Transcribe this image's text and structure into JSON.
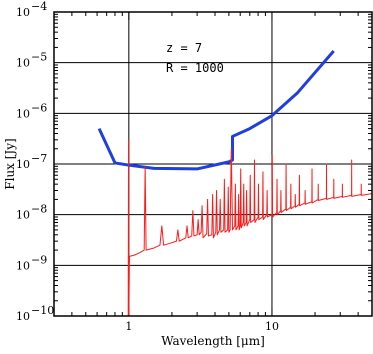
{
  "chart_data": {
    "type": "line",
    "xlabel": "Wavelength  [μm]",
    "ylabel": "Flux [Jy]",
    "x_scale": "log",
    "y_scale": "log",
    "xlim": [
      0.3,
      50
    ],
    "ylim": [
      1e-10,
      0.0001
    ],
    "grid": true,
    "annotations": [
      "z = 7",
      "R = 1000"
    ],
    "x_ticks": [
      {
        "value": 1,
        "label": "1"
      },
      {
        "value": 10,
        "label": "10"
      }
    ],
    "y_ticks": [
      {
        "value": 1e-10,
        "mantissa": "10",
        "exp": "−10"
      },
      {
        "value": 1e-09,
        "mantissa": "10",
        "exp": "−9"
      },
      {
        "value": 1e-08,
        "mantissa": "10",
        "exp": "−8"
      },
      {
        "value": 1e-07,
        "mantissa": "10",
        "exp": "−7"
      },
      {
        "value": 1e-06,
        "mantissa": "10",
        "exp": "−6"
      },
      {
        "value": 1e-05,
        "mantissa": "10",
        "exp": "−5"
      },
      {
        "value": 0.0001,
        "mantissa": "10",
        "exp": "−4"
      }
    ],
    "series": [
      {
        "color": "#1f3fe0",
        "points": [
          [
            0.62,
            5e-07
          ],
          [
            0.8,
            1.05e-07
          ],
          [
            1.0,
            9.5e-08
          ],
          [
            1.5,
            8.2e-08
          ],
          [
            3.0,
            8e-08
          ],
          [
            5.0,
            1.1e-07
          ],
          [
            5.3,
            1.2e-07
          ],
          [
            5.3,
            3.5e-07
          ],
          [
            7.0,
            5e-07
          ],
          [
            10.0,
            9e-07
          ],
          [
            15.0,
            2.5e-06
          ],
          [
            27.0,
            1.7e-05
          ]
        ]
      },
      {
        "color": "#ff1a1a",
        "points": [
          [
            0.99,
            1e-10
          ],
          [
            0.995,
            3e-07
          ],
          [
            1.0,
            1e-10
          ],
          [
            1.01,
            1.5e-09
          ],
          [
            1.1,
            1.6e-09
          ],
          [
            1.2,
            1.8e-09
          ],
          [
            1.28,
            2e-09
          ],
          [
            1.3,
            9e-08
          ],
          [
            1.32,
            2e-09
          ],
          [
            1.5,
            2.2e-09
          ],
          [
            1.65,
            2.5e-09
          ],
          [
            1.7,
            6e-09
          ],
          [
            1.75,
            2.5e-09
          ],
          [
            2.0,
            2.8e-09
          ],
          [
            2.15,
            3e-09
          ],
          [
            2.2,
            5e-09
          ],
          [
            2.25,
            3e-09
          ],
          [
            2.5,
            3.5e-09
          ],
          [
            2.55,
            6e-09
          ],
          [
            2.6,
            3.5e-09
          ],
          [
            2.75,
            3.8e-09
          ],
          [
            2.8,
            1.2e-08
          ],
          [
            2.85,
            3.8e-09
          ],
          [
            3.0,
            4e-09
          ],
          [
            3.05,
            8e-09
          ],
          [
            3.1,
            4e-09
          ],
          [
            3.2,
            4.5e-09
          ],
          [
            3.25,
            1.5e-08
          ],
          [
            3.3,
            3.5e-09
          ],
          [
            3.5,
            4.2e-09
          ],
          [
            3.55,
            2e-08
          ],
          [
            3.6,
            3.8e-09
          ],
          [
            3.8,
            4e-09
          ],
          [
            3.85,
            2.5e-08
          ],
          [
            3.9,
            3.5e-09
          ],
          [
            4.05,
            4.5e-09
          ],
          [
            4.1,
            3e-08
          ],
          [
            4.15,
            4e-09
          ],
          [
            4.3,
            5e-09
          ],
          [
            4.35,
            2e-08
          ],
          [
            4.4,
            4.5e-09
          ],
          [
            4.6,
            5e-09
          ],
          [
            4.65,
            5e-08
          ],
          [
            4.7,
            4.5e-09
          ],
          [
            4.9,
            5e-09
          ],
          [
            4.95,
            3.5e-08
          ],
          [
            5.0,
            4.5e-09
          ],
          [
            5.1,
            5e-09
          ],
          [
            5.2,
            2e-07
          ],
          [
            5.3,
            5e-09
          ],
          [
            5.5,
            6e-09
          ],
          [
            5.55,
            4e-08
          ],
          [
            5.6,
            5e-09
          ],
          [
            5.8,
            6e-09
          ],
          [
            5.85,
            2.5e-08
          ],
          [
            5.9,
            5e-09
          ],
          [
            6.0,
            6e-09
          ],
          [
            6.05,
            8e-08
          ],
          [
            6.1,
            5.5e-09
          ],
          [
            6.3,
            7e-09
          ],
          [
            6.35,
            4e-08
          ],
          [
            6.4,
            6e-09
          ],
          [
            6.6,
            7e-09
          ],
          [
            6.65,
            3e-08
          ],
          [
            6.7,
            6e-09
          ],
          [
            7.0,
            8e-09
          ],
          [
            7.05,
            6e-08
          ],
          [
            7.1,
            7e-09
          ],
          [
            7.5,
            8e-09
          ],
          [
            7.55,
            1.2e-07
          ],
          [
            7.6,
            7e-09
          ],
          [
            8.0,
            9e-09
          ],
          [
            8.05,
            4e-08
          ],
          [
            8.1,
            8e-09
          ],
          [
            8.6,
            9e-09
          ],
          [
            8.65,
            7e-08
          ],
          [
            8.7,
            8e-09
          ],
          [
            9.2,
            1e-08
          ],
          [
            9.25,
            3e-08
          ],
          [
            9.3,
            9e-09
          ],
          [
            10.0,
            1e-08
          ],
          [
            10.05,
            1.5e-07
          ],
          [
            10.1,
            9e-09
          ],
          [
            10.8,
            1.1e-08
          ],
          [
            10.85,
            5e-08
          ],
          [
            10.9,
            1e-08
          ],
          [
            11.5,
            1.2e-08
          ],
          [
            11.55,
            3e-08
          ],
          [
            11.6,
            1.1e-08
          ],
          [
            12.5,
            1.3e-08
          ],
          [
            12.55,
            1e-07
          ],
          [
            12.6,
            1.2e-08
          ],
          [
            13.5,
            1.4e-08
          ],
          [
            13.55,
            4e-08
          ],
          [
            13.6,
            1.3e-08
          ],
          [
            14.5,
            1.5e-08
          ],
          [
            14.55,
            2.5e-08
          ],
          [
            14.6,
            1.4e-08
          ],
          [
            15.5,
            1.6e-08
          ],
          [
            15.55,
            6e-08
          ],
          [
            15.6,
            1.5e-08
          ],
          [
            17.0,
            1.7e-08
          ],
          [
            17.05,
            3e-08
          ],
          [
            17.1,
            1.6e-08
          ],
          [
            19.0,
            1.8e-08
          ],
          [
            19.05,
            8e-08
          ],
          [
            19.1,
            1.7e-08
          ],
          [
            21.0,
            2e-08
          ],
          [
            21.05,
            4e-08
          ],
          [
            21.1,
            1.9e-08
          ],
          [
            24.0,
            2.1e-08
          ],
          [
            24.05,
            1e-07
          ],
          [
            24.1,
            2e-08
          ],
          [
            27.0,
            2.2e-08
          ],
          [
            27.05,
            5e-08
          ],
          [
            27.1,
            2.1e-08
          ],
          [
            31.0,
            2.3e-08
          ],
          [
            31.05,
            4e-08
          ],
          [
            31.1,
            2.2e-08
          ],
          [
            36.0,
            2.4e-08
          ],
          [
            36.05,
            1.2e-07
          ],
          [
            36.1,
            2.3e-08
          ],
          [
            42.0,
            2.5e-08
          ],
          [
            42.05,
            4e-08
          ],
          [
            42.1,
            2.4e-08
          ],
          [
            50.0,
            2.6e-08
          ]
        ]
      }
    ]
  }
}
